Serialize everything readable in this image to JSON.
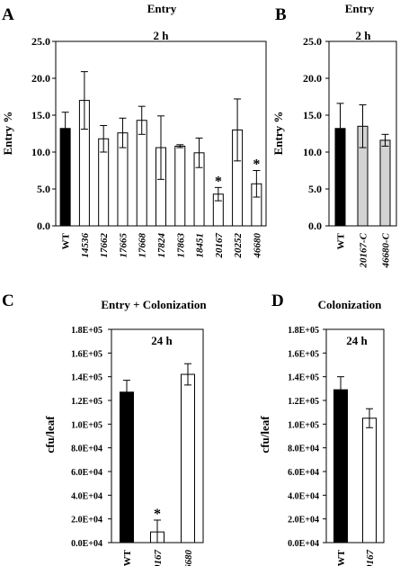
{
  "chart_data": [
    {
      "panel": "A",
      "type": "bar",
      "title": "Entry",
      "inset_label": "2 h",
      "ylabel": "Entry %",
      "ylim": [
        0,
        25
      ],
      "yticks": [
        "0.0",
        "5.0",
        "10.0",
        "15.0",
        "20.0",
        "25.0"
      ],
      "categories": [
        "WT",
        "14536",
        "17662",
        "17665",
        "17668",
        "17824",
        "17863",
        "18451",
        "20167",
        "20252",
        "46680"
      ],
      "values": [
        13.2,
        17.0,
        11.8,
        12.6,
        14.3,
        10.6,
        10.8,
        9.9,
        4.3,
        13.0,
        5.7
      ],
      "errors": [
        2.2,
        3.9,
        1.8,
        2.0,
        1.9,
        4.3,
        0.2,
        2.0,
        0.9,
        4.2,
        1.8
      ],
      "fill": [
        "#000000",
        "#ffffff",
        "#ffffff",
        "#ffffff",
        "#ffffff",
        "#ffffff",
        "#ffffff",
        "#ffffff",
        "#ffffff",
        "#ffffff",
        "#ffffff"
      ],
      "significance": [
        "",
        "",
        "",
        "",
        "",
        "",
        "",
        "",
        "*",
        "",
        "*"
      ]
    },
    {
      "panel": "B",
      "type": "bar",
      "title": "Entry",
      "inset_label": "2 h",
      "ylabel": "Entry %",
      "ylim": [
        0,
        25
      ],
      "yticks": [
        "0.0",
        "5.0",
        "10.0",
        "15.0",
        "20.0",
        "25.0"
      ],
      "categories": [
        "WT",
        "20167-C",
        "46680-C"
      ],
      "values": [
        13.2,
        13.5,
        11.6
      ],
      "errors": [
        3.4,
        2.9,
        0.8
      ],
      "fill": [
        "#000000",
        "#d3d3d3",
        "#d3d3d3"
      ],
      "significance": [
        "",
        "",
        ""
      ]
    },
    {
      "panel": "C",
      "type": "bar",
      "title": "Entry + Colonization",
      "inset_label": "24 h",
      "ylabel": "cfu/leaf",
      "ylim": [
        0,
        180000
      ],
      "yticks": [
        "0.0E+04",
        "2.0E+04",
        "4.0E+04",
        "6.0E+04",
        "8.0E+04",
        "1.0E+05",
        "1.2E+05",
        "1.4E+05",
        "1.6E+05",
        "1.8E+05"
      ],
      "categories": [
        "WT",
        "20167",
        "46680"
      ],
      "values": [
        127000,
        9000,
        142000
      ],
      "errors": [
        10000,
        10000,
        9000
      ],
      "fill": [
        "#000000",
        "#ffffff",
        "#ffffff"
      ],
      "significance": [
        "",
        "*",
        ""
      ]
    },
    {
      "panel": "D",
      "type": "bar",
      "title": "Colonization",
      "inset_label": "24 h",
      "ylabel": "cfu/leaf",
      "ylim": [
        0,
        180000
      ],
      "yticks": [
        "0.0E+04",
        "2.0E+04",
        "4.0E+04",
        "6.0E+04",
        "8.0E+04",
        "1.0E+05",
        "1.2E+05",
        "1.4E+05",
        "1.6E+05",
        "1.8E+05"
      ],
      "categories": [
        "WT",
        "20167"
      ],
      "values": [
        129000,
        105000
      ],
      "errors": [
        11000,
        8000
      ],
      "fill": [
        "#000000",
        "#ffffff"
      ],
      "significance": [
        "",
        ""
      ]
    }
  ]
}
